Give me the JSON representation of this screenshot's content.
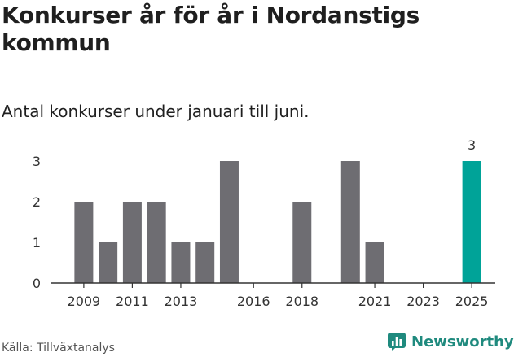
{
  "header": {
    "title": "Konkurser år för år i Nordanstigs kommun",
    "subtitle": "Antal konkurser under januari till juni."
  },
  "footer": {
    "source": "Källa: Tillväxtanalys",
    "brand": "Newsworthy",
    "brand_icon": "newsworthy-logo-icon"
  },
  "colors": {
    "bar": "#6e6d72",
    "highlight": "#00a398",
    "axis": "#333333",
    "brand": "#1f8a7e"
  },
  "chart_data": {
    "type": "bar",
    "categories": [
      "2009",
      "2010",
      "2011",
      "2012",
      "2013",
      "2014",
      "2015",
      "2016",
      "2017",
      "2018",
      "2019",
      "2020",
      "2021",
      "2022",
      "2023",
      "2024",
      "2025"
    ],
    "values": [
      2,
      1,
      2,
      2,
      1,
      1,
      3,
      0,
      0,
      2,
      0,
      3,
      1,
      0,
      0,
      0,
      3
    ],
    "xtick_labels": [
      "2009",
      "2011",
      "2013",
      "2016",
      "2018",
      "2021",
      "2023",
      "2025"
    ],
    "yticks": [
      0,
      1,
      2,
      3
    ],
    "ylim": [
      0,
      3
    ],
    "highlight_category": "2025",
    "data_labels": [
      {
        "category": "2025",
        "label": "3"
      }
    ],
    "title": "Konkurser år för år i Nordanstigs kommun",
    "xlabel": "",
    "ylabel": "",
    "grid": false,
    "legend": "none"
  }
}
